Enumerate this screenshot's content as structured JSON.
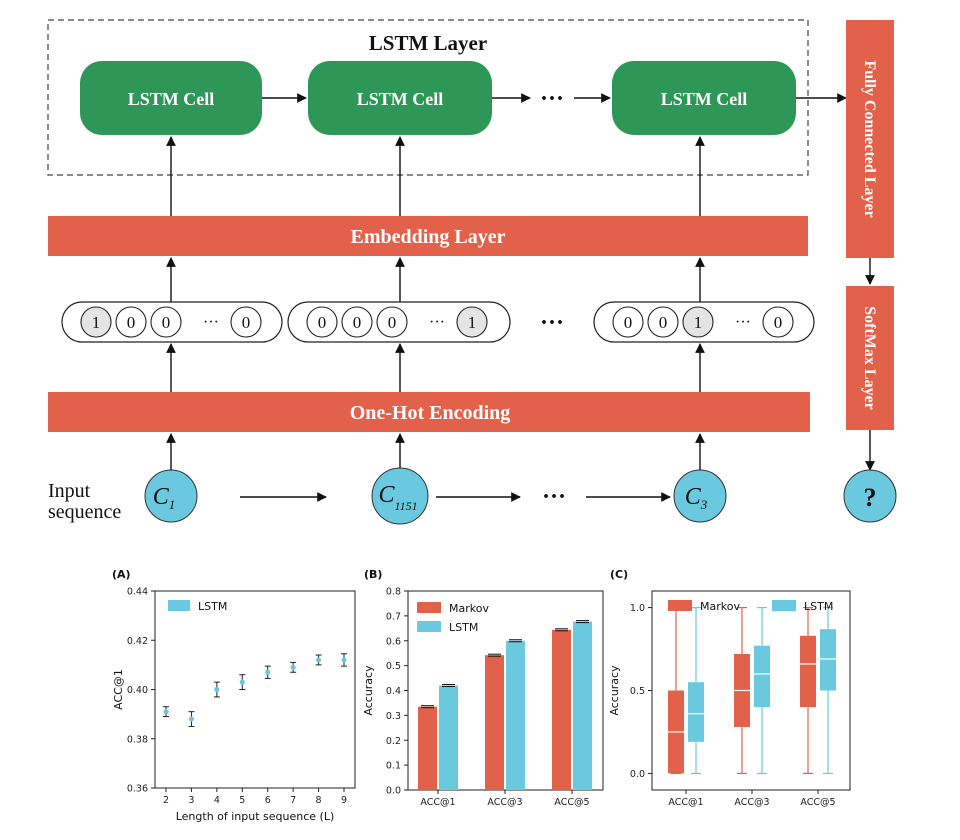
{
  "diagram": {
    "lstm_layer_title": "LSTM Layer",
    "lstm_cells": [
      "LSTM Cell",
      "LSTM Cell",
      "LSTM Cell"
    ],
    "ellipsis": "···",
    "embedding_label": "Embedding Layer",
    "onehot_label": "One-Hot Encoding",
    "fc_label": "Fully Connected Layer",
    "softmax_label": "SoftMax Layer",
    "vectors": [
      [
        "1",
        "0",
        "0",
        "···",
        "0"
      ],
      [
        "0",
        "0",
        "0",
        "···",
        "1"
      ],
      [
        "0",
        "0",
        "1",
        "···",
        "0"
      ]
    ],
    "input_label_line1": "Input",
    "input_label_line2": "sequence",
    "inputs": [
      {
        "main": "C",
        "sub": "1"
      },
      {
        "main": "C",
        "sub": "1151"
      },
      {
        "main": "C",
        "sub": "3"
      }
    ],
    "output_symbol": "?",
    "colors": {
      "cell_green": "#2e9657",
      "layer_red": "#e2614a",
      "node_blue": "#6ac8df"
    }
  },
  "chart_data": [
    {
      "panel": "(A)",
      "type": "scatter",
      "xlabel": "Length of input sequence (L)",
      "ylabel": "ACC@1",
      "x": [
        2,
        3,
        4,
        5,
        6,
        7,
        8,
        9
      ],
      "xticks": [
        "2",
        "3",
        "4",
        "5",
        "6",
        "7",
        "8",
        "9"
      ],
      "yticks": [
        "0.36",
        "0.38",
        "0.40",
        "0.42",
        "0.44"
      ],
      "ylim": [
        0.36,
        0.44
      ],
      "series": [
        {
          "name": "LSTM",
          "values": [
            0.391,
            0.388,
            0.4,
            0.403,
            0.407,
            0.409,
            0.412,
            0.412
          ],
          "errors": [
            0.002,
            0.003,
            0.003,
            0.003,
            0.0025,
            0.002,
            0.002,
            0.0025
          ]
        }
      ],
      "legend": "top-left",
      "color": "#6ac8df"
    },
    {
      "panel": "(B)",
      "type": "bar",
      "ylabel": "Accuracy",
      "categories": [
        "ACC@1",
        "ACC@3",
        "ACC@5"
      ],
      "yticks": [
        "0.0",
        "0.1",
        "0.2",
        "0.3",
        "0.4",
        "0.5",
        "0.6",
        "0.7",
        "0.8"
      ],
      "ylim": [
        0,
        0.8
      ],
      "series": [
        {
          "name": "Markov",
          "values": [
            0.335,
            0.542,
            0.644
          ],
          "color": "#e2614a"
        },
        {
          "name": "LSTM",
          "values": [
            0.42,
            0.6,
            0.677
          ],
          "color": "#6ac8df"
        }
      ],
      "legend": "top-left"
    },
    {
      "panel": "(C)",
      "type": "box",
      "ylabel": "Accuracy",
      "categories": [
        "ACC@1",
        "ACC@3",
        "ACC@5"
      ],
      "yticks": [
        "0.0",
        "0.5",
        "1.0"
      ],
      "ylim": [
        -0.1,
        1.1
      ],
      "series": [
        {
          "name": "Markov",
          "color": "#e2614a",
          "boxes": [
            {
              "min": 0.0,
              "q1": 0.0,
              "median": 0.25,
              "q3": 0.5,
              "max": 1.0
            },
            {
              "min": 0.0,
              "q1": 0.28,
              "median": 0.5,
              "q3": 0.72,
              "max": 1.0
            },
            {
              "min": 0.0,
              "q1": 0.4,
              "median": 0.66,
              "q3": 0.83,
              "max": 1.0
            }
          ]
        },
        {
          "name": "LSTM",
          "color": "#6ac8df",
          "boxes": [
            {
              "min": 0.0,
              "q1": 0.19,
              "median": 0.36,
              "q3": 0.55,
              "max": 1.0
            },
            {
              "min": 0.0,
              "q1": 0.4,
              "median": 0.6,
              "q3": 0.77,
              "max": 1.0
            },
            {
              "min": 0.0,
              "q1": 0.5,
              "median": 0.69,
              "q3": 0.87,
              "max": 1.0
            }
          ]
        }
      ],
      "legend": "top"
    }
  ]
}
